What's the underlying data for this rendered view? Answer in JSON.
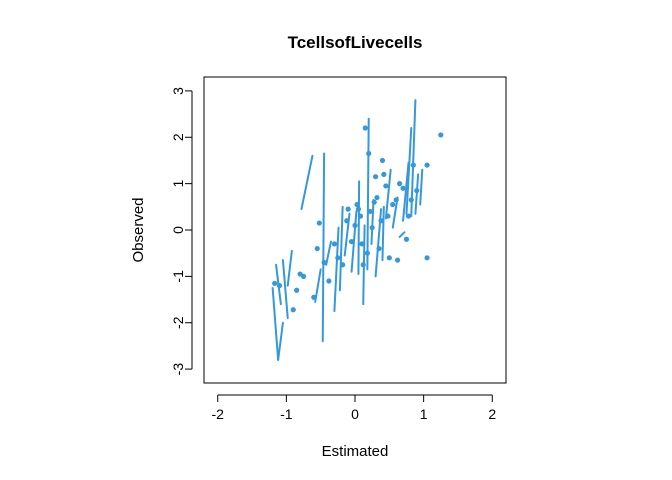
{
  "chart_data": {
    "type": "scatter",
    "title": "TcellsofLivecells",
    "xlabel": "Estimated",
    "ylabel": "Observed",
    "xlim": [
      -2.2,
      2.2
    ],
    "ylim": [
      -3.3,
      3.3
    ],
    "xticks": [
      -2,
      -1,
      0,
      1,
      2
    ],
    "yticks": [
      -3,
      -2,
      -1,
      0,
      1,
      2,
      3
    ],
    "grid": false,
    "legend": "none",
    "series": [
      {
        "color": "#3498DB",
        "points": [
          [
            -1.17,
            -1.15
          ],
          [
            -1.1,
            -1.2
          ],
          [
            -0.9,
            -1.72
          ],
          [
            -0.85,
            -1.3
          ],
          [
            -0.8,
            -0.95
          ],
          [
            -0.75,
            -1.0
          ],
          [
            -0.6,
            -1.45
          ],
          [
            -0.55,
            -0.4
          ],
          [
            -0.52,
            0.15
          ],
          [
            -0.45,
            -0.7
          ],
          [
            -0.38,
            -1.1
          ],
          [
            -0.3,
            -0.3
          ],
          [
            -0.25,
            -0.6
          ],
          [
            -0.18,
            -0.75
          ],
          [
            -0.12,
            0.2
          ],
          [
            -0.1,
            0.45
          ],
          [
            -0.05,
            -0.25
          ],
          [
            0.0,
            0.1
          ],
          [
            0.03,
            0.55
          ],
          [
            0.05,
            0.45
          ],
          [
            0.08,
            0.3
          ],
          [
            0.1,
            -0.3
          ],
          [
            0.12,
            -0.75
          ],
          [
            0.15,
            2.2
          ],
          [
            0.18,
            -0.5
          ],
          [
            0.2,
            1.65
          ],
          [
            0.22,
            0.4
          ],
          [
            0.25,
            0.05
          ],
          [
            0.28,
            0.6
          ],
          [
            0.3,
            1.15
          ],
          [
            0.32,
            0.7
          ],
          [
            0.35,
            -0.4
          ],
          [
            0.38,
            0.2
          ],
          [
            0.4,
            1.5
          ],
          [
            0.42,
            1.2
          ],
          [
            0.45,
            0.95
          ],
          [
            0.48,
            0.3
          ],
          [
            0.5,
            -0.6
          ],
          [
            0.55,
            0.55
          ],
          [
            0.6,
            0.65
          ],
          [
            0.62,
            -0.65
          ],
          [
            0.65,
            1.0
          ],
          [
            0.7,
            0.9
          ],
          [
            0.75,
            -0.2
          ],
          [
            0.78,
            0.3
          ],
          [
            0.82,
            0.65
          ],
          [
            0.85,
            1.4
          ],
          [
            0.9,
            0.85
          ],
          [
            1.05,
            1.4
          ],
          [
            1.05,
            -0.6
          ],
          [
            1.25,
            2.05
          ]
        ],
        "segments": [
          [
            [
              -1.2,
              -1.25
            ],
            [
              -1.12,
              -2.8
            ]
          ],
          [
            [
              -1.12,
              -2.8
            ],
            [
              -1.05,
              -2.0
            ]
          ],
          [
            [
              -1.15,
              -0.75
            ],
            [
              -1.08,
              -1.6
            ]
          ],
          [
            [
              -1.05,
              -0.65
            ],
            [
              -0.98,
              -1.9
            ]
          ],
          [
            [
              -0.98,
              -1.2
            ],
            [
              -0.92,
              -0.45
            ]
          ],
          [
            [
              -0.78,
              0.45
            ],
            [
              -0.62,
              1.6
            ]
          ],
          [
            [
              -0.58,
              -1.55
            ],
            [
              -0.5,
              -0.85
            ]
          ],
          [
            [
              -0.47,
              -2.4
            ],
            [
              -0.45,
              1.65
            ]
          ],
          [
            [
              -0.42,
              -0.75
            ],
            [
              -0.35,
              -0.25
            ]
          ],
          [
            [
              -0.3,
              -1.75
            ],
            [
              -0.24,
              0.05
            ]
          ],
          [
            [
              -0.22,
              -1.3
            ],
            [
              -0.18,
              0.5
            ]
          ],
          [
            [
              -0.15,
              -0.55
            ],
            [
              -0.08,
              0.35
            ]
          ],
          [
            [
              -0.05,
              -0.9
            ],
            [
              0.02,
              0.4
            ]
          ],
          [
            [
              0.05,
              -0.95
            ],
            [
              0.06,
              1.05
            ]
          ],
          [
            [
              0.12,
              -1.6
            ],
            [
              0.14,
              0.1
            ]
          ],
          [
            [
              0.18,
              -0.85
            ],
            [
              0.2,
              2.4
            ]
          ],
          [
            [
              0.24,
              -0.3
            ],
            [
              0.27,
              0.65
            ]
          ],
          [
            [
              0.3,
              -1.0
            ],
            [
              0.38,
              0.45
            ]
          ],
          [
            [
              0.4,
              -0.65
            ],
            [
              0.42,
              0.5
            ]
          ],
          [
            [
              0.45,
              0.25
            ],
            [
              0.52,
              1.3
            ]
          ],
          [
            [
              0.55,
              0.05
            ],
            [
              0.62,
              0.7
            ]
          ],
          [
            [
              0.65,
              -0.15
            ],
            [
              0.72,
              -0.05
            ]
          ],
          [
            [
              0.7,
              0.2
            ],
            [
              0.78,
              1.45
            ]
          ],
          [
            [
              0.75,
              0.35
            ],
            [
              0.82,
              2.2
            ]
          ],
          [
            [
              0.82,
              0.3
            ],
            [
              0.88,
              2.8
            ]
          ],
          [
            [
              0.88,
              0.35
            ],
            [
              0.92,
              1.2
            ]
          ],
          [
            [
              0.95,
              0.55
            ],
            [
              0.98,
              1.3
            ]
          ]
        ]
      }
    ]
  }
}
